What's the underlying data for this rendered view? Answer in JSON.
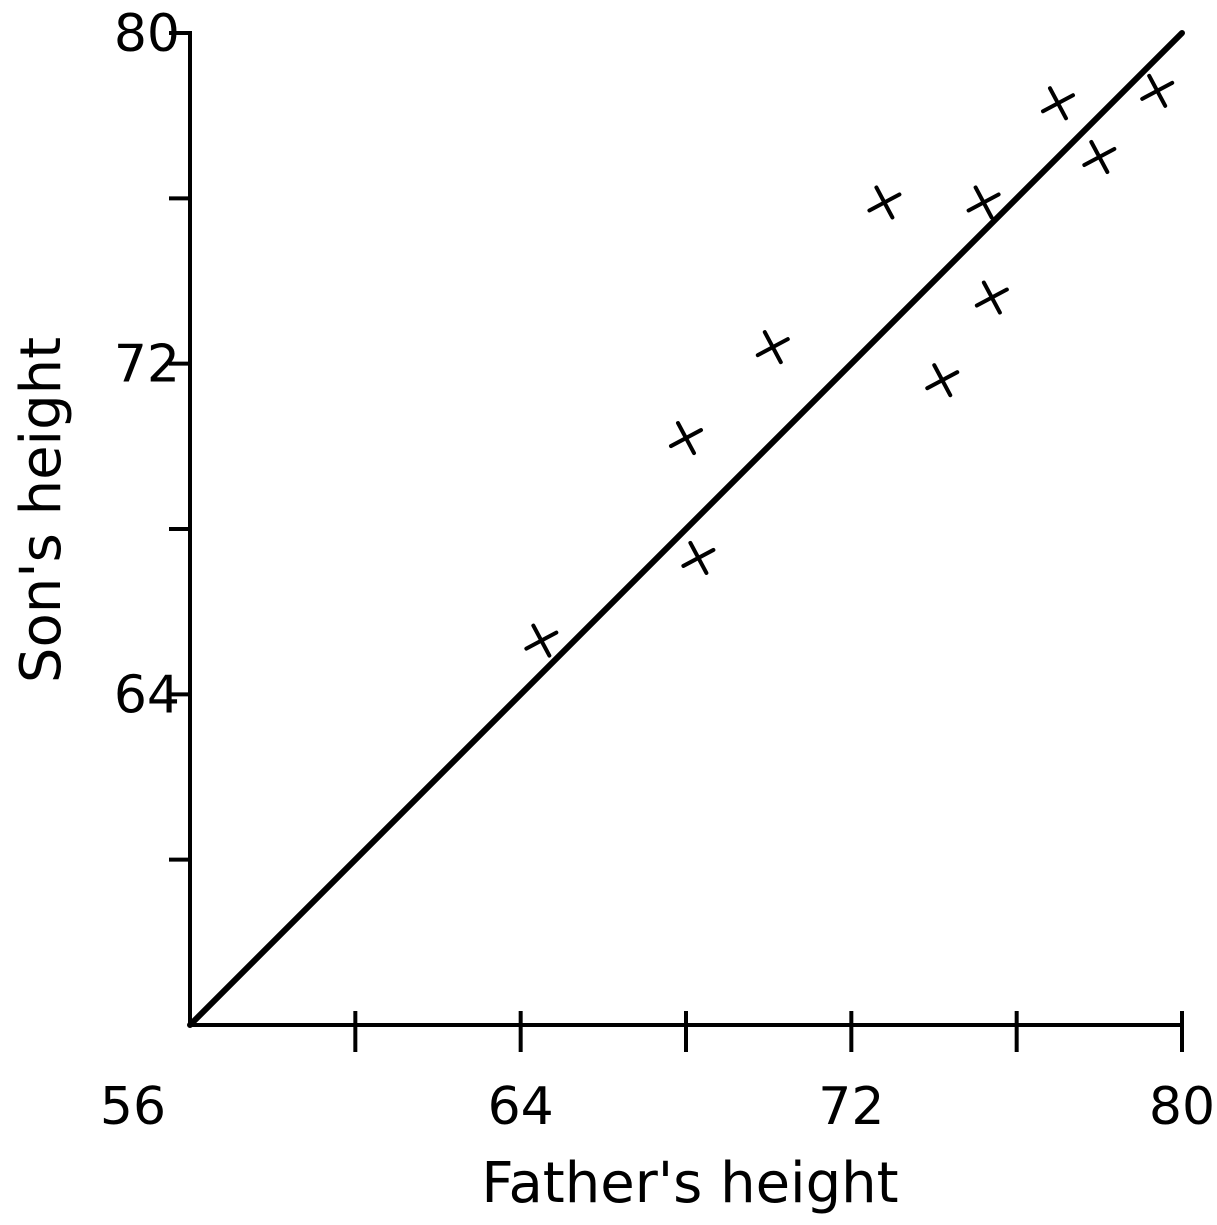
{
  "chart_data": {
    "type": "scatter",
    "title": "",
    "xlabel": "Father's height",
    "ylabel": "Son's height",
    "xlim": [
      56,
      80
    ],
    "ylim": [
      56,
      80
    ],
    "x_major_ticks": [
      56,
      64,
      72,
      80
    ],
    "x_minor_ticks": [
      60,
      68,
      76
    ],
    "y_major_ticks": [
      64,
      72,
      80
    ],
    "y_minor_ticks": [
      60,
      68,
      76
    ],
    "grid": false,
    "reference_line": {
      "x": [
        56,
        80
      ],
      "y": [
        56,
        80
      ]
    },
    "points": [
      {
        "x": 64.5,
        "y": 65.3
      },
      {
        "x": 68.0,
        "y": 70.2
      },
      {
        "x": 68.3,
        "y": 67.3
      },
      {
        "x": 70.1,
        "y": 72.4
      },
      {
        "x": 72.8,
        "y": 75.9
      },
      {
        "x": 74.2,
        "y": 71.6
      },
      {
        "x": 75.2,
        "y": 75.9
      },
      {
        "x": 75.4,
        "y": 73.6
      },
      {
        "x": 77.0,
        "y": 78.3
      },
      {
        "x": 78.0,
        "y": 77.0
      },
      {
        "x": 79.4,
        "y": 78.6
      }
    ]
  }
}
